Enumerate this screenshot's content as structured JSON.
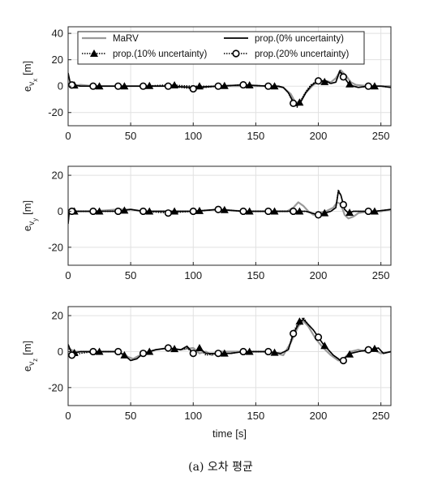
{
  "caption": "(a) 오차 평균",
  "chart_data": [
    {
      "type": "line",
      "ylabel": "e_v_x [m]",
      "ylabel_main": "e",
      "ylabel_sub1": "v",
      "ylabel_sub2": "x",
      "ylabel_unit": "[m]",
      "xlabel": "",
      "xlim": [
        0,
        258
      ],
      "ylim": [
        -30,
        45
      ],
      "xticks": [
        0,
        50,
        100,
        150,
        200,
        250
      ],
      "yticks": [
        40,
        20,
        0,
        -20
      ],
      "grid": true,
      "legend": {
        "placement": "top",
        "entries": [
          "MaRV",
          "prop.(0% uncertainty)",
          "prop.(10% uncertainty)",
          "prop.(20% uncertainty)"
        ]
      },
      "series": [
        {
          "name": "MaRV",
          "color": "#9a9a9a",
          "x": [
            0,
            10,
            20,
            40,
            60,
            80,
            100,
            120,
            140,
            160,
            165,
            172,
            178,
            182,
            186,
            190,
            196,
            202,
            206,
            210,
            214,
            218,
            222,
            226,
            230,
            240,
            250,
            258
          ],
          "y": [
            0,
            1,
            0,
            0,
            0,
            0,
            -1,
            0,
            0,
            0,
            0,
            -1,
            -6,
            -13,
            -11,
            -5,
            1,
            4,
            4,
            3,
            6,
            12,
            8,
            3,
            1,
            0,
            0,
            0
          ]
        },
        {
          "name": "prop.(0% uncertainty)",
          "color": "#000000",
          "x": [
            0,
            2,
            10,
            20,
            40,
            60,
            80,
            100,
            120,
            140,
            160,
            168,
            172,
            176,
            180,
            183,
            186,
            190,
            194,
            198,
            202,
            206,
            210,
            214,
            217,
            220,
            224,
            228,
            232,
            240,
            250,
            258
          ],
          "y": [
            10,
            1,
            0,
            0,
            0,
            0,
            0,
            -1,
            0,
            1,
            0,
            0,
            -1,
            -5,
            -12,
            -15,
            -12,
            -5,
            0,
            3,
            4,
            4,
            2,
            3,
            11,
            8,
            2,
            0,
            -1,
            0,
            0,
            -1
          ]
        },
        {
          "name": "prop.(10% uncertainty)",
          "color": "#000000",
          "x": [
            0,
            2,
            10,
            20,
            40,
            60,
            80,
            100,
            120,
            140,
            160,
            168,
            172,
            176,
            180,
            183,
            186,
            190,
            194,
            198,
            202,
            206,
            210,
            214,
            217,
            220,
            224,
            228,
            232,
            240,
            250,
            258
          ],
          "y": [
            9,
            1,
            0,
            0,
            0,
            0,
            1,
            0,
            0,
            1,
            0,
            0,
            -1,
            -5,
            -13,
            -15,
            -11,
            -4,
            1,
            3,
            4,
            3,
            2,
            3,
            12,
            8,
            2,
            0,
            -1,
            0,
            0,
            -1
          ]
        },
        {
          "name": "prop.(20% uncertainty)",
          "color": "#000000",
          "x": [
            0,
            2,
            10,
            20,
            40,
            60,
            80,
            100,
            120,
            140,
            160,
            168,
            172,
            176,
            180,
            183,
            186,
            190,
            194,
            198,
            202,
            206,
            210,
            214,
            217,
            220,
            224,
            228,
            232,
            240,
            250,
            258
          ],
          "y": [
            9,
            1,
            0,
            0,
            0,
            0,
            0,
            -2,
            0,
            1,
            0,
            0,
            -1,
            -5,
            -13,
            -16,
            -12,
            -5,
            0,
            4,
            4,
            3,
            2,
            3,
            11,
            7,
            2,
            0,
            -1,
            0,
            0,
            -1
          ]
        }
      ]
    },
    {
      "type": "line",
      "ylabel": "e_v_y [m]",
      "ylabel_main": "e",
      "ylabel_sub1": "v",
      "ylabel_sub2": "y",
      "ylabel_unit": "[m]",
      "xlabel": "",
      "xlim": [
        0,
        258
      ],
      "ylim": [
        -30,
        25
      ],
      "xticks": [
        0,
        50,
        100,
        150,
        200,
        250
      ],
      "yticks": [
        20,
        0,
        -20
      ],
      "grid": true,
      "series": [
        {
          "name": "MaRV",
          "color": "#9a9a9a",
          "x": [
            0,
            10,
            20,
            40,
            50,
            60,
            80,
            100,
            120,
            140,
            160,
            175,
            180,
            184,
            188,
            192,
            196,
            200,
            206,
            212,
            215,
            218,
            221,
            224,
            228,
            232,
            240,
            250,
            258
          ],
          "y": [
            0,
            0,
            0,
            1,
            1,
            0,
            0,
            0,
            1,
            0,
            0,
            0,
            2,
            5,
            3,
            0,
            -2,
            -1,
            0,
            2,
            5,
            4,
            -2,
            -4,
            -3,
            -1,
            0,
            0,
            1
          ]
        },
        {
          "name": "prop.(0% uncertainty)",
          "color": "#000000",
          "x": [
            0,
            1,
            3,
            10,
            20,
            40,
            50,
            60,
            80,
            100,
            120,
            140,
            160,
            180,
            190,
            195,
            200,
            205,
            210,
            214,
            216,
            218,
            221,
            224,
            228,
            235,
            245,
            258
          ],
          "y": [
            -7,
            0,
            0,
            0,
            0,
            0,
            1,
            0,
            0,
            0,
            1,
            0,
            0,
            0,
            0,
            -1,
            -2,
            -1,
            0,
            2,
            11,
            9,
            1,
            -1,
            0,
            0,
            0,
            1
          ]
        },
        {
          "name": "prop.(10% uncertainty)",
          "color": "#000000",
          "x": [
            0,
            1,
            3,
            10,
            20,
            40,
            50,
            60,
            80,
            100,
            120,
            140,
            160,
            180,
            190,
            195,
            200,
            205,
            210,
            214,
            216,
            218,
            221,
            224,
            228,
            235,
            245,
            258
          ],
          "y": [
            -6,
            0,
            0,
            0,
            0,
            0,
            1,
            0,
            0,
            0,
            1,
            0,
            0,
            0,
            0,
            -1,
            -2,
            -1,
            0,
            2,
            12,
            9,
            1,
            -1,
            0,
            0,
            0,
            1
          ]
        },
        {
          "name": "prop.(20% uncertainty)",
          "color": "#000000",
          "x": [
            0,
            1,
            3,
            10,
            20,
            40,
            50,
            60,
            80,
            100,
            120,
            140,
            160,
            180,
            190,
            195,
            200,
            205,
            210,
            214,
            216,
            218,
            221,
            224,
            228,
            235,
            245,
            258
          ],
          "y": [
            -6,
            0,
            0,
            0,
            0,
            0,
            1,
            0,
            -1,
            0,
            1,
            0,
            0,
            0,
            0,
            -1,
            -2,
            -1,
            0,
            2,
            11,
            9,
            1,
            -1,
            0,
            0,
            0,
            1
          ]
        }
      ]
    },
    {
      "type": "line",
      "ylabel": "e_v_z [m]",
      "ylabel_main": "e",
      "ylabel_sub1": "v",
      "ylabel_sub2": "z",
      "ylabel_unit": "[m]",
      "xlabel": "time [s]",
      "xlim": [
        0,
        258
      ],
      "ylim": [
        -30,
        25
      ],
      "xticks": [
        0,
        50,
        100,
        150,
        200,
        250
      ],
      "yticks": [
        20,
        0,
        -20
      ],
      "grid": true,
      "series": [
        {
          "name": "MaRV",
          "color": "#9a9a9a",
          "x": [
            0,
            5,
            20,
            40,
            48,
            52,
            60,
            70,
            80,
            90,
            100,
            105,
            110,
            115,
            120,
            140,
            160,
            172,
            178,
            184,
            188,
            192,
            198,
            204,
            210,
            216,
            220,
            226,
            232,
            238,
            244,
            250,
            258
          ],
          "y": [
            2,
            0,
            0,
            0,
            -3,
            -4,
            -1,
            1,
            2,
            1,
            2,
            -1,
            0,
            -2,
            0,
            0,
            0,
            -2,
            5,
            14,
            17,
            14,
            7,
            2,
            -2,
            -5,
            -4,
            0,
            1,
            0,
            1,
            -1,
            0
          ]
        },
        {
          "name": "prop.(0% uncertainty)",
          "color": "#000000",
          "x": [
            0,
            3,
            10,
            20,
            30,
            40,
            45,
            50,
            55,
            60,
            70,
            80,
            90,
            95,
            100,
            105,
            110,
            120,
            130,
            140,
            150,
            160,
            170,
            176,
            180,
            184,
            188,
            192,
            196,
            200,
            204,
            208,
            212,
            216,
            219,
            222,
            226,
            232,
            240,
            248,
            252,
            258
          ],
          "y": [
            4,
            -1,
            0,
            0,
            0,
            0,
            -2,
            -5,
            -4,
            -1,
            1,
            2,
            1,
            3,
            -1,
            2,
            -1,
            -1,
            -1,
            0,
            0,
            0,
            -1,
            1,
            10,
            15,
            18,
            15,
            12,
            8,
            4,
            1,
            -2,
            -4,
            -6,
            -3,
            -1,
            0,
            1,
            2,
            -1,
            0
          ]
        },
        {
          "name": "prop.(10% uncertainty)",
          "color": "#000000",
          "x": [
            0,
            3,
            10,
            20,
            30,
            40,
            45,
            50,
            55,
            60,
            70,
            80,
            90,
            95,
            100,
            105,
            110,
            120,
            130,
            140,
            150,
            160,
            170,
            176,
            180,
            184,
            188,
            192,
            196,
            200,
            204,
            208,
            212,
            216,
            219,
            222,
            226,
            232,
            240,
            248,
            252,
            258
          ],
          "y": [
            3,
            -1,
            0,
            0,
            0,
            0,
            -2,
            -5,
            -4,
            -1,
            1,
            2,
            1,
            2,
            -1,
            2,
            -1,
            -1,
            -1,
            0,
            0,
            0,
            -1,
            1,
            11,
            16,
            19,
            15,
            12,
            8,
            4,
            1,
            -2,
            -4,
            -6,
            -3,
            -1,
            0,
            1,
            2,
            -1,
            0
          ]
        },
        {
          "name": "prop.(20% uncertainty)",
          "color": "#000000",
          "x": [
            0,
            3,
            10,
            20,
            30,
            40,
            45,
            50,
            55,
            60,
            70,
            80,
            90,
            95,
            100,
            105,
            110,
            120,
            130,
            140,
            150,
            160,
            170,
            176,
            180,
            184,
            188,
            192,
            196,
            200,
            204,
            208,
            212,
            216,
            219,
            222,
            226,
            232,
            240,
            248,
            252,
            258
          ],
          "y": [
            3,
            -2,
            -1,
            0,
            0,
            0,
            -2,
            -5,
            -4,
            -1,
            1,
            2,
            1,
            3,
            -1,
            2,
            -2,
            -1,
            -1,
            0,
            0,
            0,
            -1,
            1,
            10,
            15,
            18,
            15,
            12,
            8,
            4,
            1,
            -2,
            -4,
            -6,
            -3,
            -1,
            0,
            1,
            2,
            -1,
            0
          ]
        }
      ]
    }
  ]
}
